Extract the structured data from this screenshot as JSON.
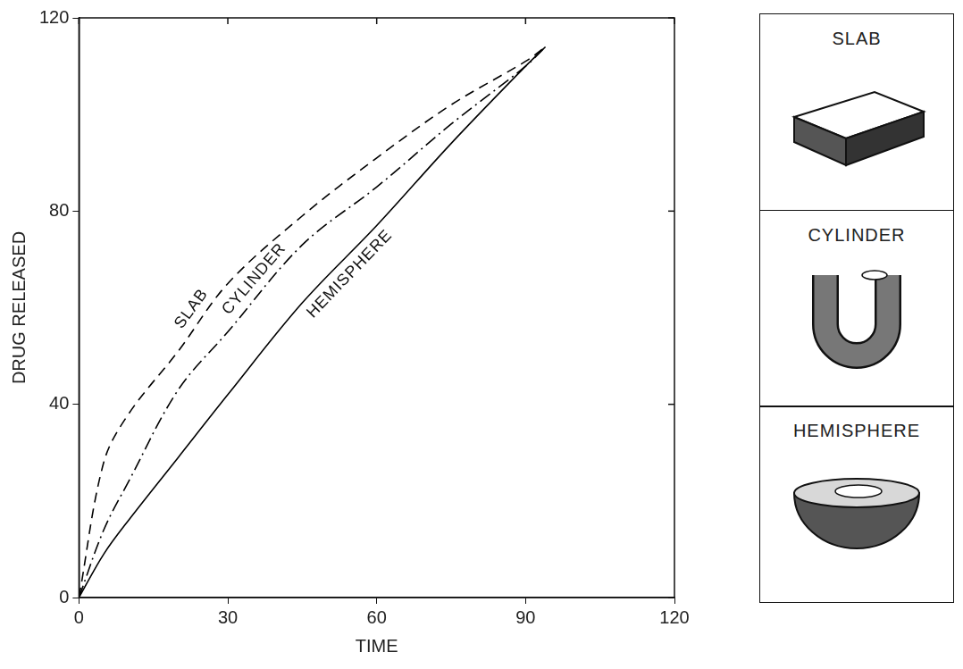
{
  "chart_data": {
    "type": "line",
    "x_label": "TIME",
    "y_label": "DRUG RELEASED",
    "x": [
      0,
      5,
      10,
      20,
      30,
      45,
      60,
      75,
      90,
      94
    ],
    "series": [
      {
        "name": "SLAB",
        "color": "#000000",
        "line_style": "dashed",
        "values": [
          0,
          28,
          38,
          51,
          65,
          79,
          91,
          102,
          111,
          114
        ]
      },
      {
        "name": "CYLINDER",
        "color": "#000000",
        "line_style": "dashdot",
        "values": [
          0,
          14,
          24,
          43,
          55,
          73,
          85,
          98,
          110,
          114
        ]
      },
      {
        "name": "HEMISPHERE",
        "color": "#000000",
        "line_style": "solid",
        "values": [
          0,
          9,
          16,
          29,
          42,
          61,
          77,
          94,
          110,
          114
        ]
      }
    ],
    "xlim": [
      0,
      120
    ],
    "xticks": [
      0,
      30,
      60,
      90,
      120
    ],
    "ylim": [
      0,
      120
    ],
    "yticks": [
      0,
      40,
      80,
      120
    ],
    "grid": false
  }
}
